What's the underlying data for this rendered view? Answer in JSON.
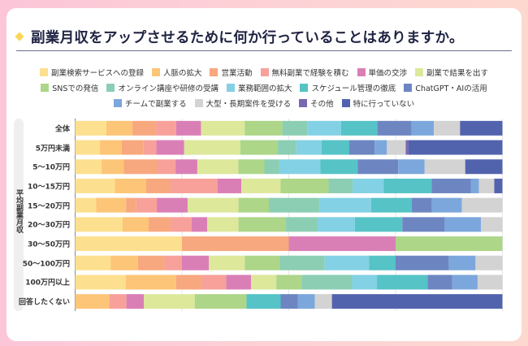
{
  "title": "副業月収をアップさせるために何か行っていることはありますか。",
  "chart_data": {
    "type": "bar",
    "orientation": "horizontal",
    "stacked": true,
    "unit": "%",
    "xlim": [
      0,
      100
    ],
    "grid": true,
    "legend_position": "top",
    "ylabel": "平均副業月収",
    "categories": [
      "全体",
      "5万円未満",
      "5～10万円",
      "10～15万円",
      "15～20万円",
      "20～30万円",
      "30～50万円",
      "50～100万円",
      "100万円以上",
      "回答したくない"
    ],
    "series": [
      {
        "name": "副業検索サービスへの登録",
        "color": "#fde08f",
        "values": [
          7.3,
          5.8,
          6.2,
          9.3,
          4.9,
          11.1,
          25,
          8.3,
          11.8,
          0
        ]
      },
      {
        "name": "人脈の拡大",
        "color": "#fdc577",
        "values": [
          6.1,
          5.1,
          5.2,
          7.3,
          7.0,
          6.1,
          0,
          6.4,
          11.8,
          8.0
        ]
      },
      {
        "name": "営業活動",
        "color": "#f8a87e",
        "values": [
          5.5,
          5.1,
          7.8,
          5.6,
          2.4,
          5.1,
          25,
          6.2,
          5.8,
          0
        ]
      },
      {
        "name": "無料副業で経験を積む",
        "color": "#f7a19a",
        "values": [
          4.7,
          3.0,
          4.3,
          11.1,
          4.8,
          4.9,
          0,
          4.1,
          5.9,
          4.0
        ]
      },
      {
        "name": "単価の交渉",
        "color": "#da7fb6",
        "values": [
          5.8,
          6.5,
          5.1,
          5.5,
          7.2,
          3.7,
          25,
          6.3,
          5.8,
          4.1
        ]
      },
      {
        "name": "副業で結果を出す",
        "color": "#dde89b",
        "values": [
          10.2,
          13.1,
          9.6,
          9.2,
          11.9,
          7.3,
          0,
          8.4,
          5.9,
          11.9
        ]
      },
      {
        "name": "SNSでの発信",
        "color": "#add688",
        "values": [
          8.8,
          8.8,
          6.1,
          11.2,
          7.1,
          11.1,
          25,
          8.2,
          5.9,
          12.1
        ]
      },
      {
        "name": "オンライン講座や研修の受講",
        "color": "#8bceb3",
        "values": [
          5.8,
          4.3,
          3.5,
          5.6,
          11.9,
          7.4,
          0,
          10.5,
          11.8,
          0
        ]
      },
      {
        "name": "業務範囲の拡大",
        "color": "#83d1e5",
        "values": [
          7.9,
          5.9,
          9.6,
          7.3,
          12.0,
          8.7,
          0,
          10.4,
          5.8,
          0
        ]
      },
      {
        "name": "スケジュール管理の徹底",
        "color": "#56c3c6",
        "values": [
          8.5,
          6.5,
          8.7,
          11.2,
          9.5,
          11.1,
          0,
          6.2,
          11.8,
          8.0
        ]
      },
      {
        "name": "ChatGPT・AIの活用",
        "color": "#6d86c2",
        "values": [
          8.0,
          5.9,
          9.5,
          9.1,
          4.7,
          9.9,
          0,
          12.5,
          5.8,
          4.0
        ]
      },
      {
        "name": "チームで副業する",
        "color": "#7ca7dc",
        "values": [
          5.2,
          2.9,
          6.2,
          1.9,
          7.0,
          8.5,
          0,
          6.2,
          5.9,
          4.0
        ]
      },
      {
        "name": "大型・長期案件を受ける",
        "color": "#d3d3d3",
        "values": [
          6.1,
          4.4,
          9.5,
          3.6,
          9.5,
          5.0,
          0,
          6.3,
          5.8,
          4.0
        ]
      },
      {
        "name": "その他",
        "color": "#7b66b0",
        "values": [
          0,
          0.6,
          0,
          0,
          0,
          0,
          0,
          0,
          0,
          0
        ]
      },
      {
        "name": "特に行っていない",
        "color": "#5263ae",
        "values": [
          9.9,
          22.0,
          8.7,
          1.9,
          0,
          0,
          0,
          0,
          0,
          39.9
        ]
      }
    ]
  }
}
